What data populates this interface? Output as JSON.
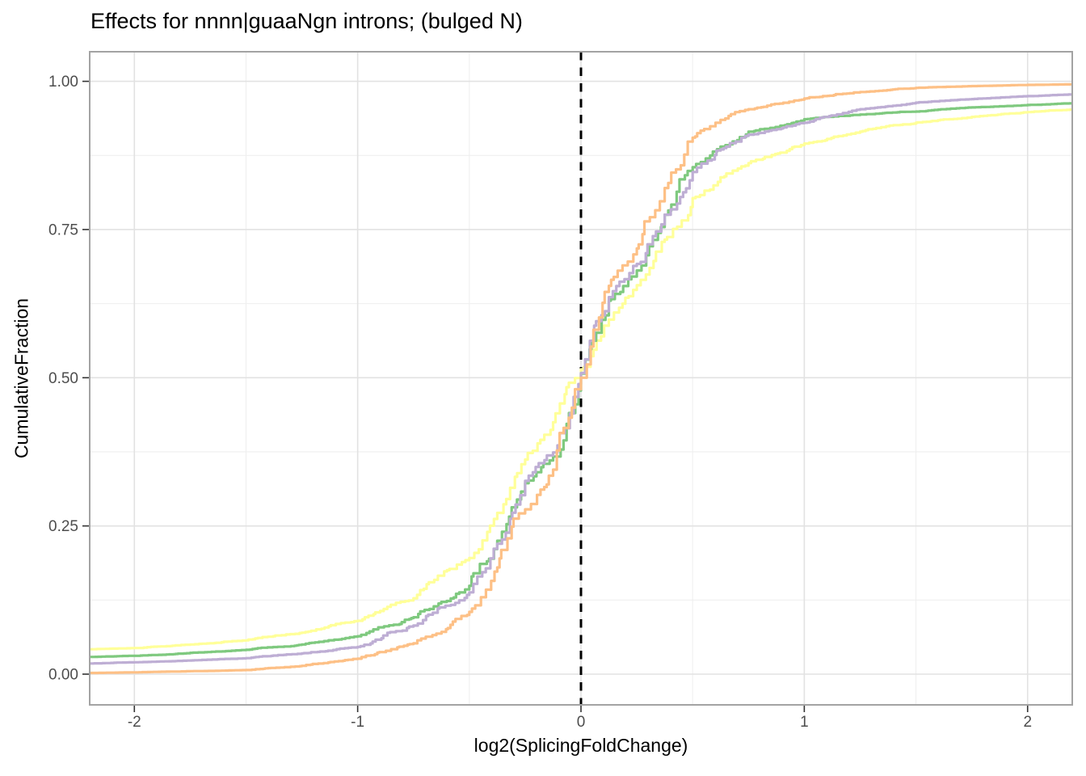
{
  "figure": {
    "kind": "ecdf-plot",
    "background": "#ffffff"
  },
  "chart_data": {
    "type": "line",
    "subtype": "ecdf_step",
    "title": "Effects for nnnn|guaaNgn introns; (bulged N)",
    "xlabel": "log2(SplicingFoldChange)",
    "ylabel": "CumulativeFraction",
    "xlim": [
      -2.2,
      2.2
    ],
    "ylim": [
      -0.052,
      1.05
    ],
    "grid": "major+minor",
    "legend": "none",
    "x_ticks": [
      {
        "value": -2,
        "label": "-2"
      },
      {
        "value": -1,
        "label": "-1"
      },
      {
        "value": 0,
        "label": "0"
      },
      {
        "value": 1,
        "label": "1"
      },
      {
        "value": 2,
        "label": "2"
      }
    ],
    "y_ticks": [
      {
        "value": 0.0,
        "label": "0.00"
      },
      {
        "value": 0.25,
        "label": "0.25"
      },
      {
        "value": 0.5,
        "label": "0.50"
      },
      {
        "value": 0.75,
        "label": "0.75"
      },
      {
        "value": 1.0,
        "label": "1.00"
      }
    ],
    "x_minor": [
      -1.5,
      -0.5,
      0.5,
      1.5
    ],
    "y_minor": [
      0.125,
      0.375,
      0.625,
      0.875
    ],
    "reference_line": {
      "x": 0,
      "style": "dashed",
      "color": "#000000"
    },
    "x": [
      -2.2,
      -2.0,
      -1.75,
      -1.5,
      -1.25,
      -1.0,
      -0.75,
      -0.5,
      -0.375,
      -0.25,
      -0.125,
      0,
      0.125,
      0.25,
      0.375,
      0.5,
      0.625,
      0.75,
      1.0,
      1.25,
      1.5,
      1.75,
      2.0,
      2.2
    ],
    "series": [
      {
        "name": "ecdf-orange",
        "color": "#FDC086",
        "y": [
          0.002,
          0.003,
          0.005,
          0.007,
          0.014,
          0.026,
          0.052,
          0.105,
          0.18,
          0.278,
          0.345,
          0.5,
          0.655,
          0.718,
          0.82,
          0.905,
          0.935,
          0.953,
          0.971,
          0.982,
          0.989,
          0.992,
          0.994,
          0.995
        ]
      },
      {
        "name": "ecdf-green",
        "color": "#7FC97F",
        "y": [
          0.029,
          0.031,
          0.036,
          0.041,
          0.05,
          0.064,
          0.096,
          0.149,
          0.225,
          0.322,
          0.367,
          0.507,
          0.63,
          0.681,
          0.775,
          0.855,
          0.89,
          0.915,
          0.936,
          0.944,
          0.949,
          0.956,
          0.96,
          0.963
        ]
      },
      {
        "name": "ecdf-purple",
        "color": "#BEAED4",
        "y": [
          0.018,
          0.02,
          0.023,
          0.027,
          0.035,
          0.046,
          0.082,
          0.138,
          0.22,
          0.326,
          0.374,
          0.508,
          0.636,
          0.692,
          0.775,
          0.847,
          0.885,
          0.91,
          0.93,
          0.953,
          0.964,
          0.97,
          0.975,
          0.978
        ]
      },
      {
        "name": "ecdf-yellow",
        "color": "#FFFF99",
        "y": [
          0.042,
          0.044,
          0.05,
          0.057,
          0.07,
          0.09,
          0.128,
          0.196,
          0.272,
          0.362,
          0.425,
          0.514,
          0.598,
          0.656,
          0.733,
          0.803,
          0.838,
          0.862,
          0.895,
          0.915,
          0.93,
          0.94,
          0.948,
          0.953
        ]
      }
    ]
  },
  "style": {
    "panel_background": "#ffffff",
    "panel_border": "#a3a3a3",
    "grid_major": "#e2e2e2",
    "grid_minor": "#efefef",
    "tick_mark_color": "#333333",
    "tick_label_color": "#4d4d4d",
    "title_color": "#000000",
    "curve_width": 3.2
  }
}
